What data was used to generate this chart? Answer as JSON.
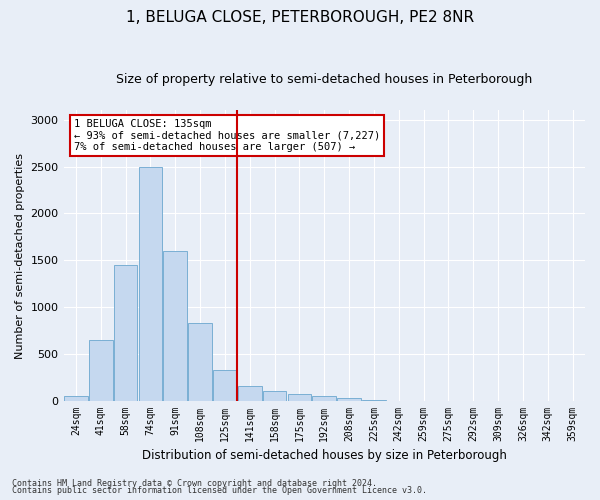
{
  "title": "1, BELUGA CLOSE, PETERBOROUGH, PE2 8NR",
  "subtitle": "Size of property relative to semi-detached houses in Peterborough",
  "xlabel": "Distribution of semi-detached houses by size in Peterborough",
  "ylabel": "Number of semi-detached properties",
  "categories": [
    "24sqm",
    "41sqm",
    "58sqm",
    "74sqm",
    "91sqm",
    "108sqm",
    "125sqm",
    "141sqm",
    "158sqm",
    "175sqm",
    "192sqm",
    "208sqm",
    "225sqm",
    "242sqm",
    "259sqm",
    "275sqm",
    "292sqm",
    "309sqm",
    "326sqm",
    "342sqm",
    "359sqm"
  ],
  "values": [
    50,
    650,
    1450,
    2500,
    1600,
    830,
    330,
    160,
    110,
    70,
    55,
    30,
    15,
    5,
    5,
    3,
    2,
    1,
    1,
    1,
    1
  ],
  "bar_color": "#c5d8ef",
  "bar_edge_color": "#7aafd4",
  "vline_color": "#cc0000",
  "annotation_text": "1 BELUGA CLOSE: 135sqm\n← 93% of semi-detached houses are smaller (7,227)\n7% of semi-detached houses are larger (507) →",
  "annotation_box_color": "#ffffff",
  "annotation_box_edge": "#cc0000",
  "ylim": [
    0,
    3100
  ],
  "yticks": [
    0,
    500,
    1000,
    1500,
    2000,
    2500,
    3000
  ],
  "footer1": "Contains HM Land Registry data © Crown copyright and database right 2024.",
  "footer2": "Contains public sector information licensed under the Open Government Licence v3.0.",
  "background_color": "#e8eef7",
  "plot_background": "#e8eef7",
  "grid_color": "#ffffff",
  "title_fontsize": 11,
  "subtitle_fontsize": 9,
  "vline_index": 7
}
